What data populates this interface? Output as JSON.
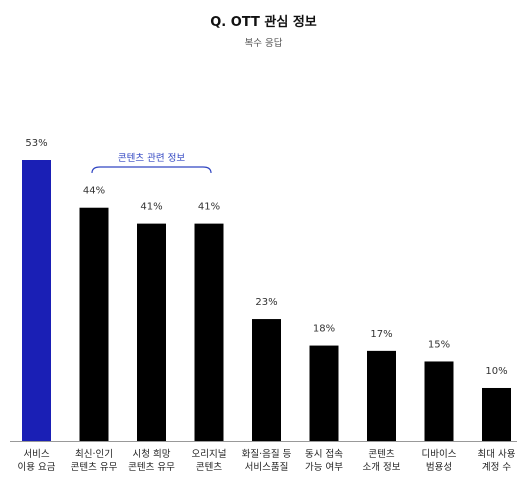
{
  "chart_data": {
    "type": "bar",
    "title": "Q. OTT 관심 정보",
    "subtitle": "복수 응답",
    "unit": "%",
    "categories": [
      [
        "서비스",
        "이용 요금"
      ],
      [
        "최신·인기",
        "콘텐츠 유무"
      ],
      [
        "시청 희망",
        "콘텐츠 유무"
      ],
      [
        "오리지널",
        "콘텐츠"
      ],
      [
        "화질·음질 등",
        "서비스품질"
      ],
      [
        "동시 접속",
        "가능 여부"
      ],
      [
        "콘텐츠",
        "소개 정보"
      ],
      [
        "디바이스",
        "범용성"
      ],
      [
        "최대 사용",
        "계정 수"
      ]
    ],
    "values": [
      53,
      44,
      41,
      41,
      23,
      18,
      17,
      15,
      10
    ],
    "value_labels": [
      "53%",
      "44%",
      "41%",
      "41%",
      "23%",
      "18%",
      "17%",
      "15%",
      "10%"
    ],
    "highlight_index": 0,
    "bracket": {
      "label": "콘텐츠 관련 정보",
      "from_index": 1,
      "to_index": 3
    },
    "ylim": [
      0,
      53
    ],
    "grid": false,
    "colors": {
      "highlight": "#1a1fb5",
      "bar": "#000000",
      "bracket": "#3146c2",
      "axis": "#999999"
    }
  }
}
